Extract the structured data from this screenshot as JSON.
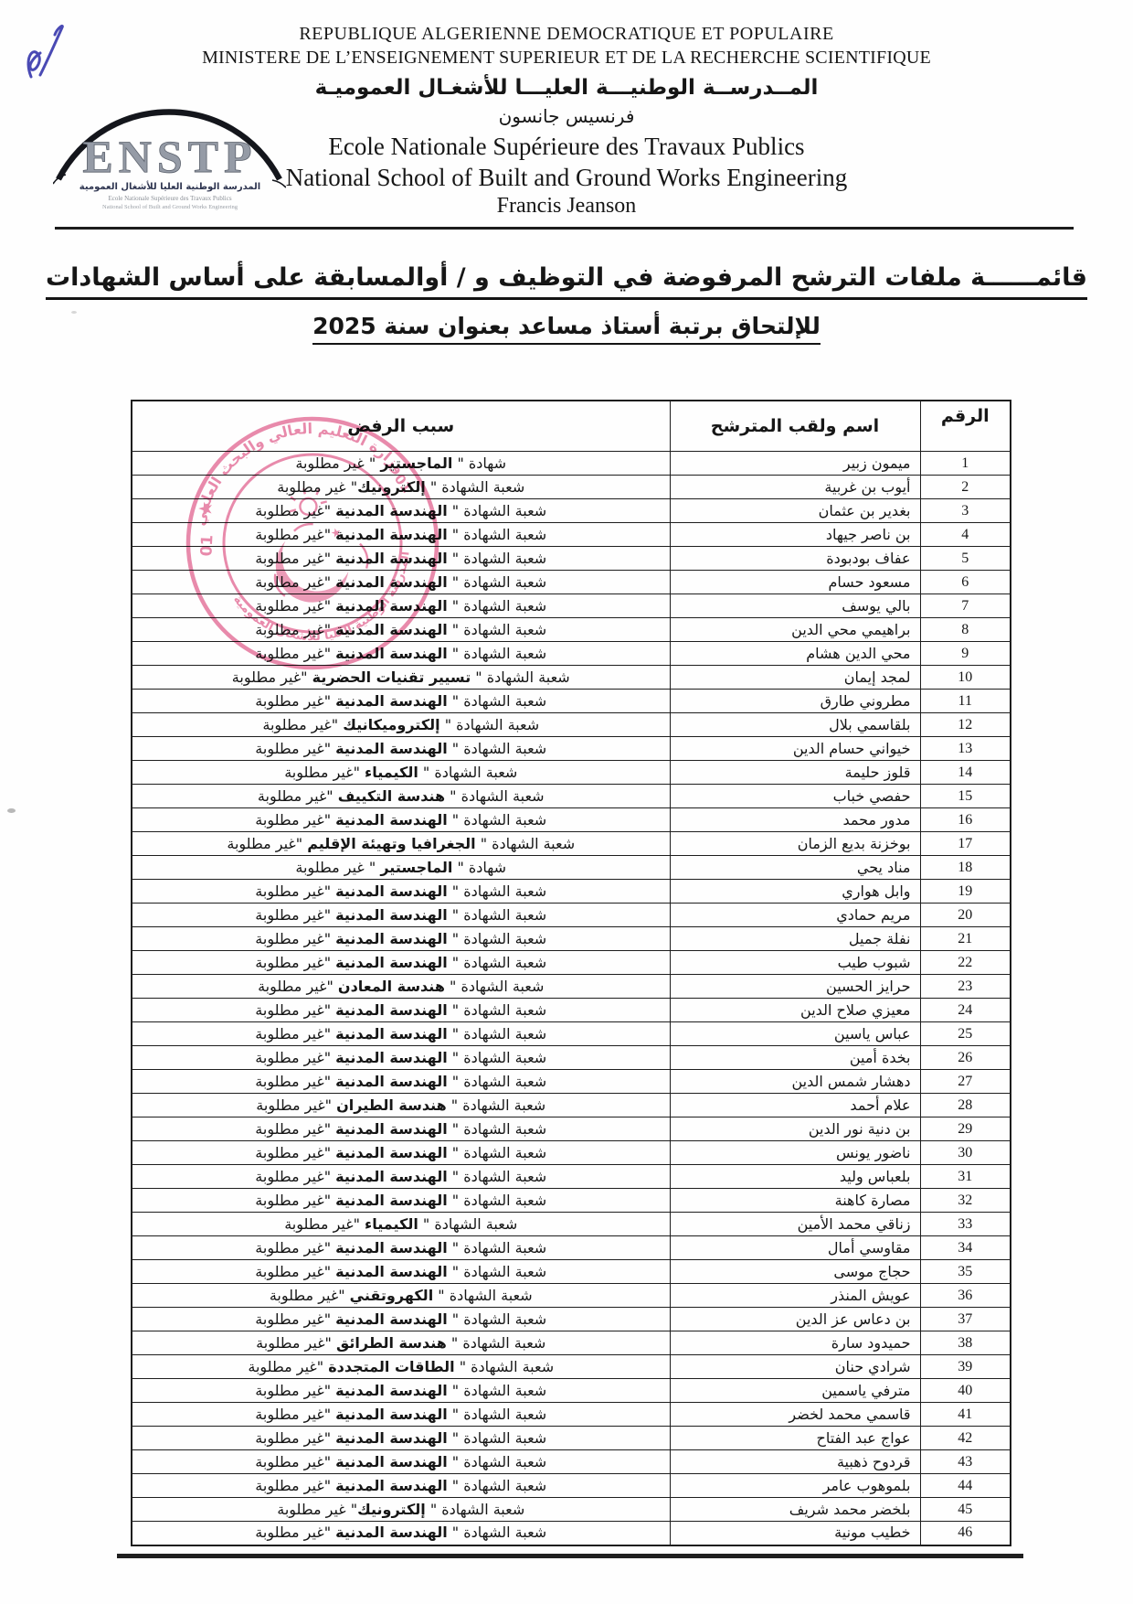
{
  "header": {
    "republic_line": "REPUBLIQUE ALGERIENNE DEMOCRATIQUE ET POPULAIRE",
    "ministry_line": "MINISTERE DE L’ENSEIGNEMENT SUPERIEUR ET DE LA RECHERCHE SCIENTIFIQUE",
    "school_arabic": "المــدرســة الوطنيـــة العليـــا للأشغـال العموميـة",
    "school_name_arabic": "فرنسيس جانسون",
    "school_french": "Ecole Nationale Supérieure des Travaux Publics",
    "school_english": "National School of Built and Ground Works Engineering",
    "school_person": "Francis Jeanson"
  },
  "logo": {
    "acronym": "ENSTP",
    "arabic": "المدرسة الوطنية العليا للأشغال العمومية",
    "french": "Ecole Nationale Supérieure des Travaux Publics",
    "english": "National School of Built and Ground Works Engineering"
  },
  "title": {
    "line1": "قائمــــــة ملفات الترشح المرفوضة في التوظيف و / أوالمسابقة على أساس الشهادات",
    "line2": "للإلتحاق برتبة أستاذ مساعد بعنوان سنة 2025"
  },
  "stamp": {
    "top_text": "وزارة التعليم العالي والبحث العلمي",
    "bottom_text": "المدرسة الوطنية العليا للأشغال العمومية",
    "number": "01",
    "star": "★",
    "color": "#e4719a"
  },
  "table": {
    "headers": [
      "الرقم",
      "اسم ولقب المترشح",
      "سبب الرفض"
    ],
    "rows": [
      {
        "n": "1",
        "name": "ميمون زبير",
        "reason": "شهادة \" الماجستير \" غير مطلوبة",
        "bold": "الماجستير"
      },
      {
        "n": "2",
        "name": "أيوب بن غربية",
        "reason": "شعبة الشهادة \" إلكترونيك\" غير مطلوبة",
        "bold": "إلكترونيك"
      },
      {
        "n": "3",
        "name": "بغدير بن عثمان",
        "reason": "شعبة الشهادة \" الهندسة المدنية \"غير مطلوبة",
        "bold": "الهندسة المدنية"
      },
      {
        "n": "4",
        "name": "بن ناصر جيهاد",
        "reason": "شعبة الشهادة \" الهندسة المدنية \"غير مطلوبة",
        "bold": "الهندسة المدنية"
      },
      {
        "n": "5",
        "name": "عفاف بودبودة",
        "reason": "شعبة الشهادة \" الهندسة المدنية \"غير مطلوبة",
        "bold": "الهندسة المدنية"
      },
      {
        "n": "6",
        "name": "مسعود حسام",
        "reason": "شعبة الشهادة \" الهندسة المدنية \"غير مطلوبة",
        "bold": "الهندسة المدنية"
      },
      {
        "n": "7",
        "name": "بالي يوسف",
        "reason": "شعبة الشهادة \" الهندسة المدنية \"غير مطلوبة",
        "bold": "الهندسة المدنية"
      },
      {
        "n": "8",
        "name": "براهيمي محي الدين",
        "reason": "شعبة الشهادة \" الهندسة المدنية \"غير مطلوبة",
        "bold": "الهندسة المدنية"
      },
      {
        "n": "9",
        "name": "محي الدين هشام",
        "reason": "شعبة الشهادة \" الهندسة المدنية \"غير مطلوبة",
        "bold": "الهندسة المدنية"
      },
      {
        "n": "10",
        "name": "لمجد إيمان",
        "reason": "شعبة الشهادة \" تسيير تقنيات الحضرية \"غير مطلوبة",
        "bold": "تسيير تقنيات الحضرية"
      },
      {
        "n": "11",
        "name": "مطروني طارق",
        "reason": "شعبة الشهادة \" الهندسة المدنية \"غير مطلوبة",
        "bold": "الهندسة المدنية"
      },
      {
        "n": "12",
        "name": "بلقاسمي بلال",
        "reason": "شعبة الشهادة \" إلكتروميكانيك \"غير مطلوبة",
        "bold": "إلكتروميكانيك"
      },
      {
        "n": "13",
        "name": "خيواني حسام الدين",
        "reason": "شعبة الشهادة \" الهندسة المدنية \"غير مطلوبة",
        "bold": "الهندسة المدنية"
      },
      {
        "n": "14",
        "name": "قلوز حليمة",
        "reason": "شعبة الشهادة \" الكيمياء \"غير مطلوبة",
        "bold": "الكيمياء"
      },
      {
        "n": "15",
        "name": "حفصي خباب",
        "reason": "شعبة الشهادة \" هندسة التكييف \"غير مطلوبة",
        "bold": "هندسة التكييف"
      },
      {
        "n": "16",
        "name": "مدور محمد",
        "reason": "شعبة الشهادة \" الهندسة المدنية \"غير مطلوبة",
        "bold": "الهندسة المدنية"
      },
      {
        "n": "17",
        "name": "بوخزنة بديع الزمان",
        "reason": "شعبة الشهادة \" الجغرافيا وتهيئة الإقليم \"غير مطلوبة",
        "bold": "الجغرافيا وتهيئة الإقليم"
      },
      {
        "n": "18",
        "name": "مناد يحي",
        "reason": "شهادة \" الماجستير \" غير مطلوبة",
        "bold": "الماجستير"
      },
      {
        "n": "19",
        "name": "وابل هواري",
        "reason": "شعبة الشهادة \" الهندسة المدنية \"غير مطلوبة",
        "bold": "الهندسة المدنية"
      },
      {
        "n": "20",
        "name": "مريم حمادي",
        "reason": "شعبة الشهادة \" الهندسة المدنية \"غير مطلوبة",
        "bold": "الهندسة المدنية"
      },
      {
        "n": "21",
        "name": "نفلة جميل",
        "reason": "شعبة الشهادة \" الهندسة المدنية \"غير مطلوبة",
        "bold": "الهندسة المدنية"
      },
      {
        "n": "22",
        "name": "شبوب طيب",
        "reason": "شعبة الشهادة \" الهندسة المدنية \"غير مطلوبة",
        "bold": "الهندسة المدنية"
      },
      {
        "n": "23",
        "name": "حرايز الحسين",
        "reason": "شعبة الشهادة \" هندسة المعادن \"غير مطلوبة",
        "bold": "هندسة المعادن"
      },
      {
        "n": "24",
        "name": "معيزي صلاح الدين",
        "reason": "شعبة الشهادة \" الهندسة المدنية \"غير مطلوبة",
        "bold": "الهندسة المدنية"
      },
      {
        "n": "25",
        "name": "عباس ياسين",
        "reason": "شعبة الشهادة \" الهندسة المدنية \"غير مطلوبة",
        "bold": "الهندسة المدنية"
      },
      {
        "n": "26",
        "name": "بخدة أمين",
        "reason": "شعبة الشهادة \" الهندسة المدنية \"غير مطلوبة",
        "bold": "الهندسة المدنية"
      },
      {
        "n": "27",
        "name": "دهشار شمس الدين",
        "reason": "شعبة الشهادة \" الهندسة المدنية \"غير مطلوبة",
        "bold": "الهندسة المدنية"
      },
      {
        "n": "28",
        "name": "علام أحمد",
        "reason": "شعبة الشهادة \" هندسة الطيران \"غير مطلوبة",
        "bold": "هندسة الطيران"
      },
      {
        "n": "29",
        "name": "بن دنية نور الدين",
        "reason": "شعبة الشهادة \" الهندسة المدنية \"غير مطلوبة",
        "bold": "الهندسة المدنية"
      },
      {
        "n": "30",
        "name": "ناضور يونس",
        "reason": "شعبة الشهادة \" الهندسة المدنية \"غير مطلوبة",
        "bold": "الهندسة المدنية"
      },
      {
        "n": "31",
        "name": "بلعباس وليد",
        "reason": "شعبة الشهادة \" الهندسة المدنية \"غير مطلوبة",
        "bold": "الهندسة المدنية"
      },
      {
        "n": "32",
        "name": "مصارة كاهنة",
        "reason": "شعبة الشهادة \" الهندسة المدنية \"غير مطلوبة",
        "bold": "الهندسة المدنية"
      },
      {
        "n": "33",
        "name": "زناقي محمد الأمين",
        "reason": "شعبة الشهادة \" الكيمياء \"غير مطلوبة",
        "bold": "الكيمياء"
      },
      {
        "n": "34",
        "name": "مقاوسي أمال",
        "reason": "شعبة الشهادة \" الهندسة المدنية \"غير مطلوبة",
        "bold": "الهندسة المدنية"
      },
      {
        "n": "35",
        "name": "حجاج موسى",
        "reason": "شعبة الشهادة \" الهندسة المدنية \"غير مطلوبة",
        "bold": "الهندسة المدنية"
      },
      {
        "n": "36",
        "name": "عويش المنذر",
        "reason": "شعبة الشهادة \" الكهروتقني \"غير مطلوبة",
        "bold": "الكهروتقني"
      },
      {
        "n": "37",
        "name": "بن دعاس عز الدين",
        "reason": "شعبة الشهادة \" الهندسة المدنية \"غير مطلوبة",
        "bold": "الهندسة المدنية"
      },
      {
        "n": "38",
        "name": "حميدود سارة",
        "reason": "شعبة الشهادة \" هندسة الطرائق \"غير مطلوبة",
        "bold": "هندسة الطرائق"
      },
      {
        "n": "39",
        "name": "شرادي حنان",
        "reason": "شعبة الشهادة \" الطاقات المتجددة \"غير مطلوبة",
        "bold": "الطاقات المتجددة"
      },
      {
        "n": "40",
        "name": "مترفي ياسمين",
        "reason": "شعبة الشهادة \" الهندسة المدنية \"غير مطلوبة",
        "bold": "الهندسة المدنية"
      },
      {
        "n": "41",
        "name": "قاسمي محمد لخضر",
        "reason": "شعبة الشهادة \" الهندسة المدنية \"غير مطلوبة",
        "bold": "الهندسة المدنية"
      },
      {
        "n": "42",
        "name": "عواج عبد الفتاح",
        "reason": "شعبة الشهادة \" الهندسة المدنية \"غير مطلوبة",
        "bold": "الهندسة المدنية"
      },
      {
        "n": "43",
        "name": "قردوح ذهبية",
        "reason": "شعبة الشهادة \" الهندسة المدنية \"غير مطلوبة",
        "bold": "الهندسة المدنية"
      },
      {
        "n": "44",
        "name": "بلموهوب عامر",
        "reason": "شعبة الشهادة \" الهندسة المدنية \"غير مطلوبة",
        "bold": "الهندسة المدنية"
      },
      {
        "n": "45",
        "name": "بلخضر محمد شريف",
        "reason": "شعبة الشهادة \" إلكترونيك\" غير مطلوبة",
        "bold": "إلكترونيك"
      },
      {
        "n": "46",
        "name": "خطيب مونية",
        "reason": "شعبة الشهادة \" الهندسة المدنية \"غير مطلوبة",
        "bold": "الهندسة المدنية"
      }
    ]
  }
}
